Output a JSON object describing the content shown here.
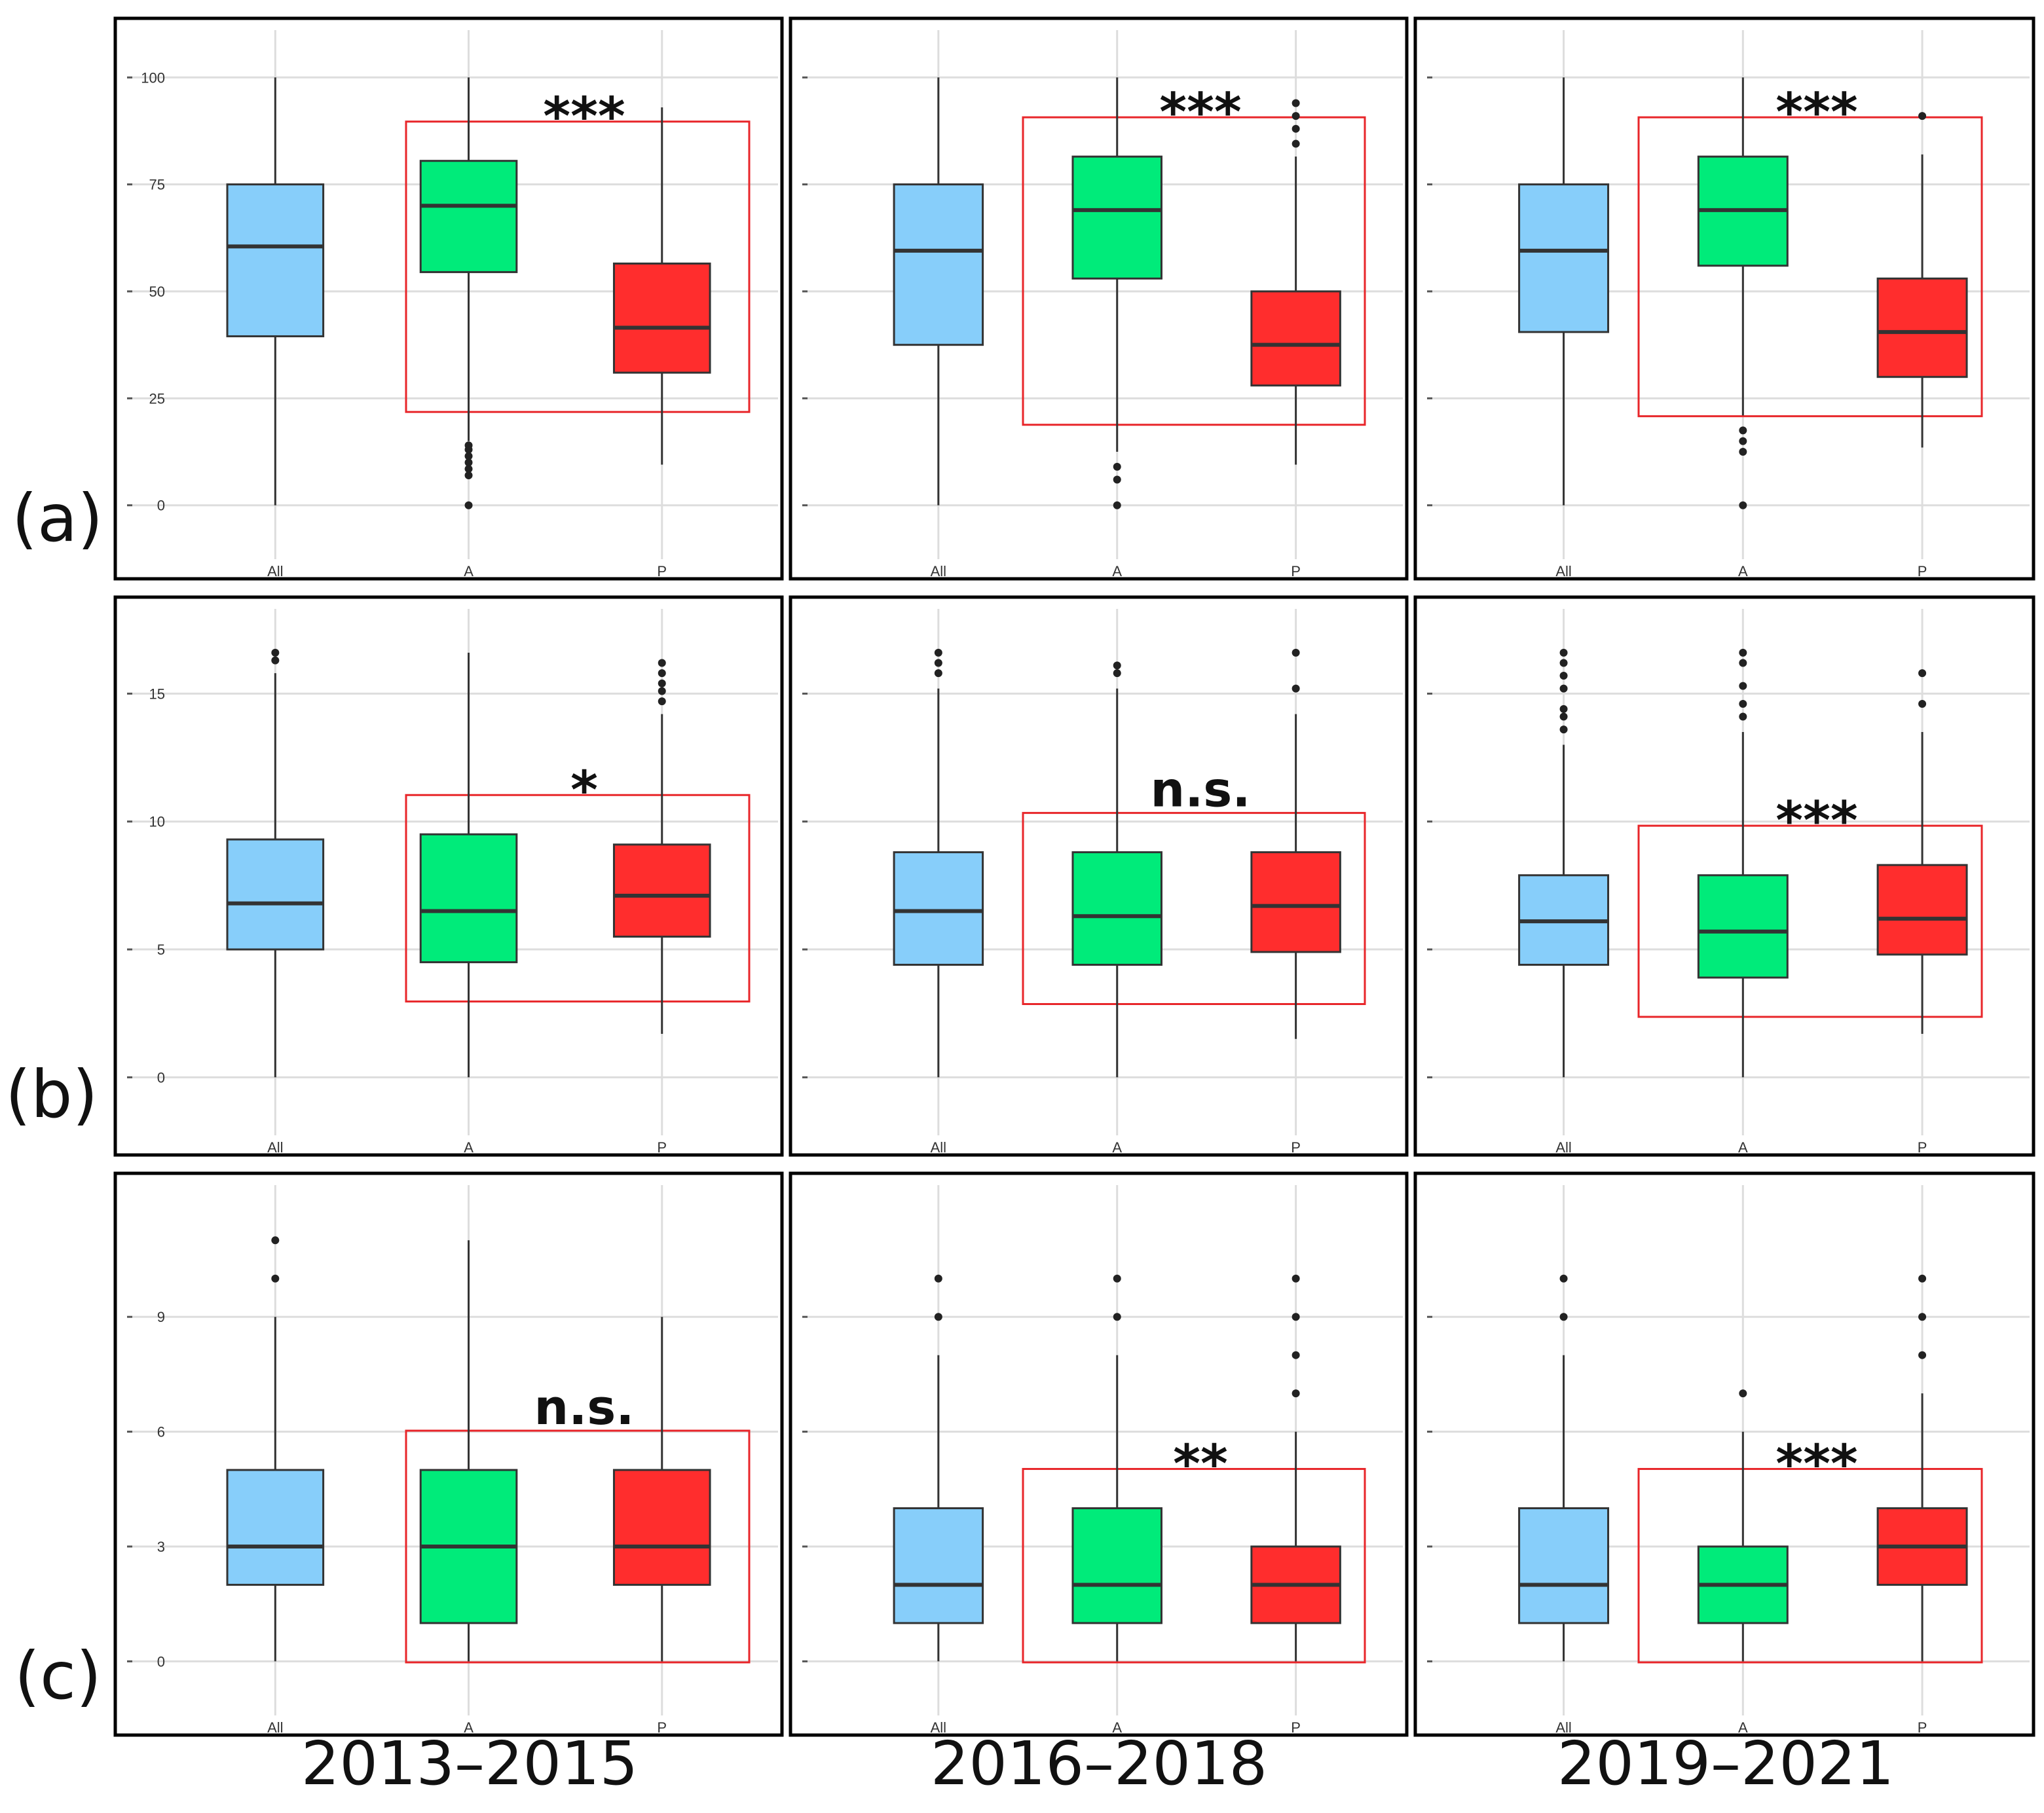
{
  "row_labels": [
    "(a)",
    "(b)",
    "(c)"
  ],
  "period_labels": [
    "2013–2015",
    "2016–2018",
    "2019–2021"
  ],
  "colors": {
    "All": "#87CEFA",
    "A": "#00EB7A",
    "P": "#FF2D2D",
    "highlight_box": "#E8262A",
    "grid": "#DDDDDD",
    "frame": "#000000"
  },
  "chart_data": [
    {
      "type": "box",
      "row": "(a)",
      "period": "2013–2015",
      "categories": [
        "All",
        "A",
        "P"
      ],
      "ylim": [
        -8,
        108
      ],
      "yticks": [
        0,
        25,
        50,
        75,
        100
      ],
      "boxes": [
        {
          "group": "All",
          "min": 0,
          "q1": 39.5,
          "median": 60.5,
          "q3": 75,
          "max": 100,
          "outliers": []
        },
        {
          "group": "A",
          "min": 15,
          "q1": 54.5,
          "median": 70,
          "q3": 80.5,
          "max": 100,
          "outliers": [
            0,
            7,
            8.5,
            10,
            11.5,
            13,
            14
          ]
        },
        {
          "group": "P",
          "min": 9.5,
          "q1": 31,
          "median": 41.5,
          "q3": 56.5,
          "max": 93,
          "outliers": []
        }
      ],
      "significance": "***"
    },
    {
      "type": "box",
      "row": "(a)",
      "period": "2016–2018",
      "categories": [
        "All",
        "A",
        "P"
      ],
      "ylim": [
        -8,
        108
      ],
      "yticks": [],
      "boxes": [
        {
          "group": "All",
          "min": 0,
          "q1": 37.5,
          "median": 59.5,
          "q3": 75,
          "max": 100,
          "outliers": []
        },
        {
          "group": "A",
          "min": 12.5,
          "q1": 53,
          "median": 69,
          "q3": 81.5,
          "max": 100,
          "outliers": [
            0,
            6,
            9
          ]
        },
        {
          "group": "P",
          "min": 9.5,
          "q1": 28,
          "median": 37.5,
          "q3": 50,
          "max": 81.5,
          "outliers": [
            84.5,
            88,
            91,
            94
          ]
        }
      ],
      "significance": "***"
    },
    {
      "type": "box",
      "row": "(a)",
      "period": "2019–2021",
      "categories": [
        "All",
        "A",
        "P"
      ],
      "ylim": [
        -8,
        108
      ],
      "yticks": [],
      "boxes": [
        {
          "group": "All",
          "min": 0,
          "q1": 40.5,
          "median": 59.5,
          "q3": 75,
          "max": 100,
          "outliers": []
        },
        {
          "group": "A",
          "min": 21,
          "q1": 56,
          "median": 69,
          "q3": 81.5,
          "max": 100,
          "outliers": [
            0,
            12.5,
            15,
            17.5
          ]
        },
        {
          "group": "P",
          "min": 13.5,
          "q1": 30,
          "median": 40.5,
          "q3": 53,
          "max": 82,
          "outliers": [
            91
          ]
        }
      ],
      "significance": "***"
    },
    {
      "type": "box",
      "row": "(b)",
      "period": "2013–2015",
      "categories": [
        "All",
        "A",
        "P"
      ],
      "ylim": [
        -1.5,
        17.8
      ],
      "yticks": [
        0,
        5,
        10,
        15
      ],
      "boxes": [
        {
          "group": "All",
          "min": 0,
          "q1": 5,
          "median": 6.8,
          "q3": 9.3,
          "max": 15.8,
          "outliers": [
            16.3,
            16.6
          ]
        },
        {
          "group": "A",
          "min": 0,
          "q1": 4.5,
          "median": 6.5,
          "q3": 9.5,
          "max": 16.6,
          "outliers": []
        },
        {
          "group": "P",
          "min": 1.7,
          "q1": 5.5,
          "median": 7.1,
          "q3": 9.1,
          "max": 14.2,
          "outliers": [
            14.7,
            15.1,
            15.4,
            15.8,
            16.2
          ]
        }
      ],
      "significance": "*"
    },
    {
      "type": "box",
      "row": "(b)",
      "period": "2016–2018",
      "categories": [
        "All",
        "A",
        "P"
      ],
      "ylim": [
        -1.5,
        17.8
      ],
      "yticks": [],
      "boxes": [
        {
          "group": "All",
          "min": 0,
          "q1": 4.4,
          "median": 6.5,
          "q3": 8.8,
          "max": 15.2,
          "outliers": [
            15.8,
            16.2,
            16.6
          ]
        },
        {
          "group": "A",
          "min": 0,
          "q1": 4.4,
          "median": 6.3,
          "q3": 8.8,
          "max": 15.2,
          "outliers": [
            15.8,
            16.1
          ]
        },
        {
          "group": "P",
          "min": 1.5,
          "q1": 4.9,
          "median": 6.7,
          "q3": 8.8,
          "max": 14.2,
          "outliers": [
            15.2,
            16.6
          ]
        }
      ],
      "significance": "n.s."
    },
    {
      "type": "box",
      "row": "(b)",
      "period": "2019–2021",
      "categories": [
        "All",
        "A",
        "P"
      ],
      "ylim": [
        -1.5,
        17.8
      ],
      "yticks": [],
      "boxes": [
        {
          "group": "All",
          "min": 0,
          "q1": 4.4,
          "median": 6.1,
          "q3": 7.9,
          "max": 13,
          "outliers": [
            13.6,
            14.1,
            14.4,
            15.2,
            15.7,
            16.2,
            16.6
          ]
        },
        {
          "group": "A",
          "min": 0,
          "q1": 3.9,
          "median": 5.7,
          "q3": 7.9,
          "max": 13.5,
          "outliers": [
            14.1,
            14.6,
            15.3,
            16.2,
            16.6
          ]
        },
        {
          "group": "P",
          "min": 1.7,
          "q1": 4.8,
          "median": 6.2,
          "q3": 8.3,
          "max": 13.5,
          "outliers": [
            14.6,
            15.8
          ]
        }
      ],
      "significance": "***"
    },
    {
      "type": "box",
      "row": "(c)",
      "period": "2013–2015",
      "categories": [
        "All",
        "A",
        "P"
      ],
      "ylim": [
        -0.9,
        12.1
      ],
      "yticks": [
        0,
        3,
        6,
        9
      ],
      "boxes": [
        {
          "group": "All",
          "min": 0,
          "q1": 2,
          "median": 3,
          "q3": 5,
          "max": 9,
          "outliers": [
            10,
            11
          ]
        },
        {
          "group": "A",
          "min": 0,
          "q1": 1,
          "median": 3,
          "q3": 5,
          "max": 11,
          "outliers": []
        },
        {
          "group": "P",
          "min": 0,
          "q1": 2,
          "median": 3,
          "q3": 5,
          "max": 9,
          "outliers": []
        }
      ],
      "significance": "n.s."
    },
    {
      "type": "box",
      "row": "(c)",
      "period": "2016–2018",
      "categories": [
        "All",
        "A",
        "P"
      ],
      "ylim": [
        -0.9,
        12.1
      ],
      "yticks": [],
      "boxes": [
        {
          "group": "All",
          "min": 0,
          "q1": 1,
          "median": 2,
          "q3": 4,
          "max": 8,
          "outliers": [
            9,
            10
          ]
        },
        {
          "group": "A",
          "min": 0,
          "q1": 1,
          "median": 2,
          "q3": 4,
          "max": 8,
          "outliers": [
            9,
            10
          ]
        },
        {
          "group": "P",
          "min": 0,
          "q1": 1,
          "median": 2,
          "q3": 3,
          "max": 6,
          "outliers": [
            7,
            8,
            9,
            10
          ]
        }
      ],
      "significance": "**"
    },
    {
      "type": "box",
      "row": "(c)",
      "period": "2019–2021",
      "categories": [
        "All",
        "A",
        "P"
      ],
      "ylim": [
        -0.9,
        12.1
      ],
      "yticks": [],
      "boxes": [
        {
          "group": "All",
          "min": 0,
          "q1": 1,
          "median": 2,
          "q3": 4,
          "max": 8,
          "outliers": [
            9,
            10
          ]
        },
        {
          "group": "A",
          "min": 0,
          "q1": 1,
          "median": 2,
          "q3": 3,
          "max": 6,
          "outliers": [
            7
          ]
        },
        {
          "group": "P",
          "min": 0,
          "q1": 2,
          "median": 3,
          "q3": 4,
          "max": 7,
          "outliers": [
            8,
            9,
            10
          ]
        }
      ],
      "significance": "***"
    }
  ]
}
